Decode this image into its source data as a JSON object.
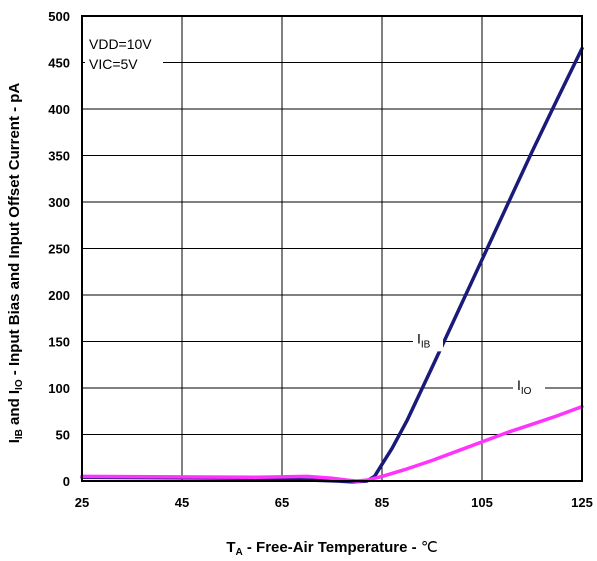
{
  "chart_data": {
    "type": "line",
    "xlabel": {
      "main": "T",
      "sub": "A",
      "rest": " - Free-Air Temperature - ",
      "unit": "℃"
    },
    "ylabel": {
      "p1": "I",
      "s1": "IB",
      "p2": " and I",
      "s2": "IO",
      "rest": " - Input Bias and Input Offset Current - pA"
    },
    "xlim": [
      25,
      125
    ],
    "ylim": [
      0,
      500
    ],
    "x_ticks": [
      "25",
      "45",
      "65",
      "85",
      "105",
      "125"
    ],
    "y_ticks": [
      "0",
      "50",
      "100",
      "150",
      "200",
      "250",
      "300",
      "350",
      "400",
      "450",
      "500"
    ],
    "grid": true,
    "conditions": [
      "VDD=10V",
      "VIC=5V"
    ],
    "series": [
      {
        "name": "I_IB",
        "label_main": "I",
        "label_sub": "IB",
        "color": "#1a1a7a",
        "x": [
          25,
          60,
          76,
          79,
          82,
          83.5,
          85,
          87,
          90,
          95,
          100,
          105,
          110,
          115,
          120,
          125
        ],
        "values": [
          4,
          3,
          0,
          -1,
          0,
          5,
          18,
          35,
          65,
          122,
          180,
          238,
          296,
          354,
          410,
          465
        ]
      },
      {
        "name": "I_IO",
        "label_main": "I",
        "label_sub": "IO",
        "color": "#ff33ff",
        "x": [
          25,
          60,
          70,
          75,
          78,
          80,
          82,
          85,
          90,
          95,
          100,
          105,
          110,
          115,
          120,
          125
        ],
        "values": [
          5,
          4,
          5,
          3,
          1,
          0,
          1,
          5,
          13,
          22,
          32,
          42,
          52,
          61,
          70,
          80
        ]
      }
    ]
  }
}
